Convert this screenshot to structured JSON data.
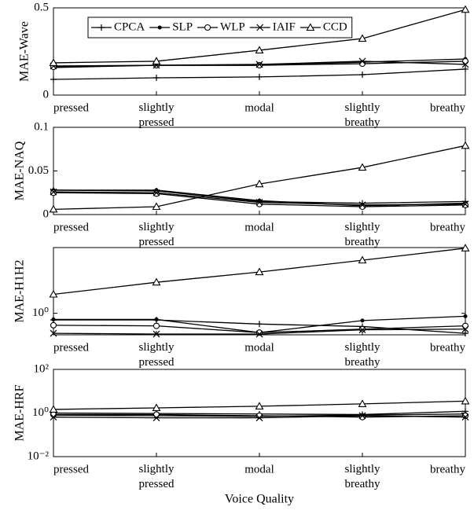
{
  "chart_data": [
    {
      "type": "line",
      "ylabel": "MAE-Wave",
      "categories": [
        "pressed",
        "slightly pressed",
        "modal",
        "slightly breathy",
        "breathy"
      ],
      "ylim": [
        0,
        0.5
      ],
      "yticks": [
        0,
        0.5
      ],
      "legend": "upper left",
      "series": [
        {
          "name": "CPCA",
          "marker": "plus",
          "color": "#000000",
          "values": [
            0.09,
            0.099,
            0.104,
            0.117,
            0.149
          ]
        },
        {
          "name": "SLP",
          "marker": "dot",
          "color": "#000000",
          "values": [
            0.158,
            0.171,
            0.171,
            0.189,
            0.207
          ]
        },
        {
          "name": "WLP",
          "marker": "circle",
          "color": "#000000",
          "values": [
            0.162,
            0.171,
            0.171,
            0.18,
            0.194
          ]
        },
        {
          "name": "IAIF",
          "marker": "cross",
          "color": "#000000",
          "values": [
            0.167,
            0.171,
            0.176,
            0.194,
            0.176
          ]
        },
        {
          "name": "CCD",
          "marker": "triangle",
          "color": "#000000",
          "values": [
            0.185,
            0.194,
            0.257,
            0.324,
            0.49
          ]
        }
      ]
    },
    {
      "type": "line",
      "ylabel": "MAE-NAQ",
      "categories": [
        "pressed",
        "slightly pressed",
        "modal",
        "slightly breathy",
        "breathy"
      ],
      "ylim": [
        0,
        0.1
      ],
      "yticks": [
        0,
        0.05,
        0.1
      ],
      "series": [
        {
          "marker": "plus",
          "color": "#000000",
          "values": [
            0.028,
            0.027,
            0.015,
            0.013,
            0.015
          ]
        },
        {
          "marker": "dot",
          "color": "#000000",
          "values": [
            0.028,
            0.028,
            0.016,
            0.01,
            0.013
          ]
        },
        {
          "marker": "circle",
          "color": "#000000",
          "values": [
            0.025,
            0.024,
            0.012,
            0.009,
            0.011
          ]
        },
        {
          "marker": "cross",
          "color": "#000000",
          "values": [
            0.026,
            0.025,
            0.014,
            0.011,
            0.012
          ]
        },
        {
          "marker": "triangle",
          "color": "#000000",
          "values": [
            0.006,
            0.009,
            0.035,
            0.054,
            0.079
          ]
        }
      ]
    },
    {
      "type": "line",
      "ylabel": "MAE-H1H2",
      "log_scale": true,
      "categories": [
        "pressed",
        "slightly pressed",
        "modal",
        "slightly breathy",
        "breathy"
      ],
      "ylim": [
        0.64,
        3.9
      ],
      "yticks": [
        {
          "value": 1,
          "label": "10⁰"
        }
      ],
      "series": [
        {
          "marker": "plus",
          "color": "#000000",
          "values": [
            0.87,
            0.87,
            0.8,
            0.76,
            0.66
          ]
        },
        {
          "marker": "dot",
          "color": "#000000",
          "values": [
            0.88,
            0.88,
            0.67,
            0.86,
            0.94
          ]
        },
        {
          "marker": "circle",
          "color": "#000000",
          "values": [
            0.78,
            0.77,
            0.67,
            0.72,
            0.77
          ]
        },
        {
          "marker": "cross",
          "color": "#000000",
          "values": [
            0.66,
            0.65,
            0.65,
            0.71,
            0.72
          ]
        },
        {
          "marker": "triangle",
          "color": "#000000",
          "values": [
            1.48,
            1.9,
            2.35,
            3.0,
            3.85
          ]
        }
      ]
    },
    {
      "type": "line",
      "ylabel": "MAE-HRF",
      "xlabel": "Voice Quality",
      "log_scale": true,
      "categories": [
        "pressed",
        "slightly pressed",
        "modal",
        "slightly breathy",
        "breathy"
      ],
      "ylim": [
        0.01,
        100
      ],
      "yticks": [
        {
          "value": 0.01,
          "label": "10⁻²"
        },
        {
          "value": 1,
          "label": "10⁰"
        },
        {
          "value": 100,
          "label": "10²"
        }
      ],
      "series": [
        {
          "marker": "plus",
          "color": "#000000",
          "values": [
            1.0,
            0.95,
            0.9,
            0.85,
            1.2
          ]
        },
        {
          "marker": "dot",
          "color": "#000000",
          "values": [
            0.8,
            0.75,
            0.7,
            0.8,
            0.9
          ]
        },
        {
          "marker": "circle",
          "color": "#000000",
          "values": [
            0.85,
            0.85,
            0.75,
            0.65,
            0.75
          ]
        },
        {
          "marker": "cross",
          "color": "#000000",
          "values": [
            0.65,
            0.6,
            0.6,
            0.75,
            0.65
          ]
        },
        {
          "marker": "triangle",
          "color": "#000000",
          "values": [
            1.46,
            1.72,
            2.04,
            2.62,
            3.5
          ]
        }
      ]
    }
  ]
}
